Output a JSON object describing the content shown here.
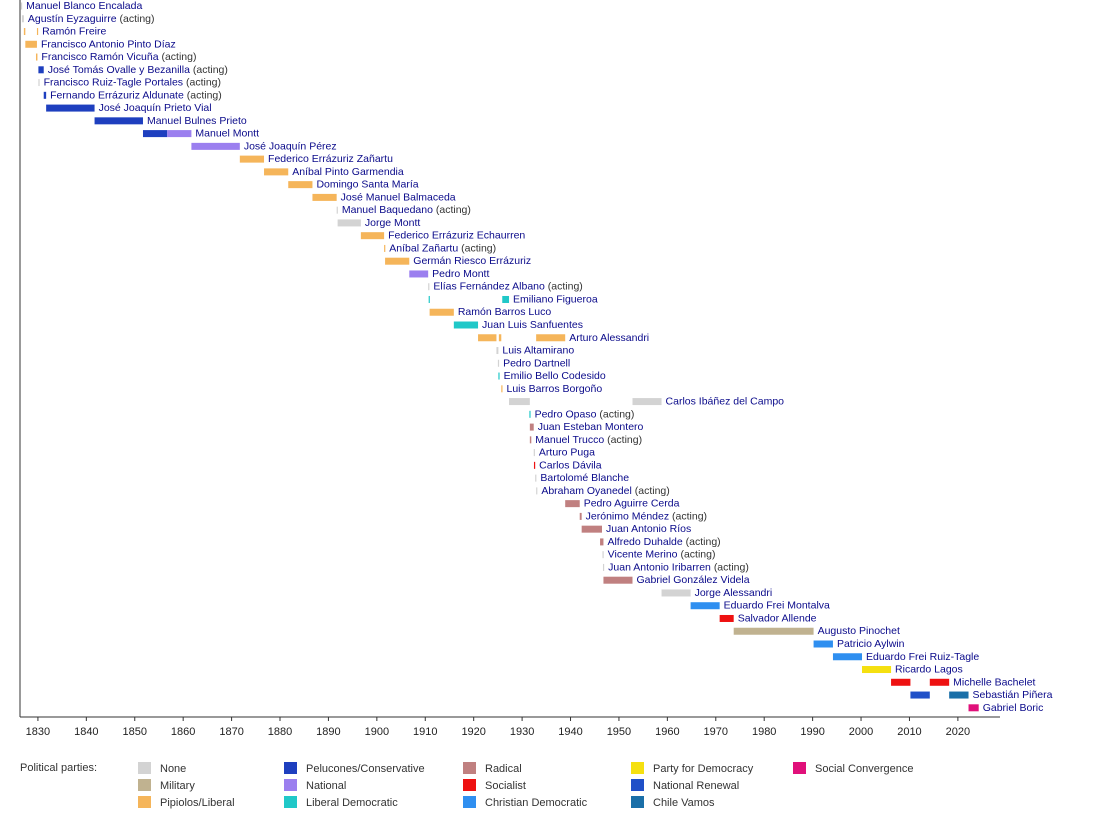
{
  "chart_data": {
    "type": "timeline",
    "xlim": [
      1826.3,
      2028.7
    ],
    "xticks": [
      1830,
      1840,
      1850,
      1860,
      1870,
      1880,
      1890,
      1900,
      1910,
      1920,
      1930,
      1940,
      1950,
      1960,
      1970,
      1980,
      1990,
      2000,
      2010,
      2020
    ],
    "rows": [
      {
        "name": "Manuel Blanco Encalada",
        "terms": [
          {
            "start": 1826.5,
            "end": 1826.7,
            "color": "#d3d3d3"
          }
        ]
      },
      {
        "name": "Agustín Eyzaguirre",
        "note": "(acting)",
        "terms": [
          {
            "start": 1826.7,
            "end": 1827.1,
            "color": "#d3d3d3"
          }
        ]
      },
      {
        "name": "Ramón Freire",
        "terms": [
          {
            "start": 1827.1,
            "end": 1827.4,
            "color": "#f5b55a"
          },
          {
            "start": 1829.8,
            "end": 1830.0,
            "color": "#f5b55a"
          }
        ]
      },
      {
        "name": "Francisco Antonio Pinto Díaz",
        "terms": [
          {
            "start": 1827.4,
            "end": 1829.8,
            "color": "#f5b55a"
          }
        ]
      },
      {
        "name": "Francisco Ramón Vicuña",
        "note": "(acting)",
        "terms": [
          {
            "start": 1829.6,
            "end": 1829.9,
            "color": "#f5b55a"
          }
        ]
      },
      {
        "name": "José Tomás Ovalle y Bezanilla",
        "note": "(acting)",
        "terms": [
          {
            "start": 1830.1,
            "end": 1831.2,
            "color": "#1e3fbf"
          }
        ]
      },
      {
        "name": "Francisco Ruiz-Tagle Portales",
        "note": "(acting)",
        "terms": [
          {
            "start": 1830.1,
            "end": 1830.3,
            "color": "#d3d3d3"
          }
        ]
      },
      {
        "name": "Fernando Errázuriz Aldunate",
        "note": "(acting)",
        "terms": [
          {
            "start": 1831.2,
            "end": 1831.7,
            "color": "#1e3fbf"
          }
        ]
      },
      {
        "name": "José Joaquín Prieto Vial",
        "terms": [
          {
            "start": 1831.7,
            "end": 1841.7,
            "color": "#1e3fbf"
          }
        ]
      },
      {
        "name": "Manuel Bulnes Prieto",
        "terms": [
          {
            "start": 1841.7,
            "end": 1851.7,
            "color": "#1e3fbf"
          }
        ]
      },
      {
        "name": "Manuel Montt",
        "terms": [
          {
            "start": 1851.7,
            "end": 1856.7,
            "color": "#1e3fbf"
          },
          {
            "start": 1856.7,
            "end": 1861.7,
            "color": "#9b7fef"
          }
        ]
      },
      {
        "name": "José Joaquín Pérez",
        "terms": [
          {
            "start": 1861.7,
            "end": 1871.7,
            "color": "#9b7fef"
          }
        ]
      },
      {
        "name": "Federico Errázuriz Zañartu",
        "terms": [
          {
            "start": 1871.7,
            "end": 1876.7,
            "color": "#f5b55a"
          }
        ]
      },
      {
        "name": "Aníbal Pinto Garmendia",
        "terms": [
          {
            "start": 1876.7,
            "end": 1881.7,
            "color": "#f5b55a"
          }
        ]
      },
      {
        "name": "Domingo Santa María",
        "terms": [
          {
            "start": 1881.7,
            "end": 1886.7,
            "color": "#f5b55a"
          }
        ]
      },
      {
        "name": "José Manuel Balmaceda",
        "terms": [
          {
            "start": 1886.7,
            "end": 1891.7,
            "color": "#f5b55a"
          }
        ]
      },
      {
        "name": "Manuel Baquedano",
        "note": "(acting)",
        "terms": [
          {
            "start": 1891.7,
            "end": 1891.9,
            "color": "#d3d3d3"
          }
        ]
      },
      {
        "name": "Jorge Montt",
        "terms": [
          {
            "start": 1891.9,
            "end": 1896.7,
            "color": "#d3d3d3"
          }
        ]
      },
      {
        "name": "Federico Errázuriz Echaurren",
        "terms": [
          {
            "start": 1896.7,
            "end": 1901.5,
            "color": "#f5b55a"
          }
        ]
      },
      {
        "name": "Aníbal Zañartu",
        "note": "(acting)",
        "terms": [
          {
            "start": 1901.5,
            "end": 1901.7,
            "color": "#f5b55a"
          }
        ]
      },
      {
        "name": "Germán Riesco Errázuriz",
        "terms": [
          {
            "start": 1901.7,
            "end": 1906.7,
            "color": "#f5b55a"
          }
        ]
      },
      {
        "name": "Pedro Montt",
        "terms": [
          {
            "start": 1906.7,
            "end": 1910.6,
            "color": "#9b7fef"
          }
        ]
      },
      {
        "name": "Elías Fernández Albano",
        "note": "(acting)",
        "terms": [
          {
            "start": 1910.6,
            "end": 1910.7,
            "color": "#d3d3d3"
          }
        ]
      },
      {
        "name": "Emiliano Figueroa",
        "terms": [
          {
            "start": 1910.7,
            "end": 1910.9,
            "color": "#20c8c8"
          },
          {
            "start": 1925.9,
            "end": 1927.3,
            "color": "#20c8c8"
          }
        ]
      },
      {
        "name": "Ramón Barros Luco",
        "terms": [
          {
            "start": 1910.9,
            "end": 1915.9,
            "color": "#f5b55a"
          }
        ]
      },
      {
        "name": "Juan Luis Sanfuentes",
        "terms": [
          {
            "start": 1915.9,
            "end": 1920.9,
            "color": "#20c8c8"
          }
        ]
      },
      {
        "name": "Arturo Alessandri",
        "terms": [
          {
            "start": 1920.9,
            "end": 1924.7,
            "color": "#f5b55a"
          },
          {
            "start": 1925.2,
            "end": 1925.7,
            "color": "#f5b55a"
          },
          {
            "start": 1932.9,
            "end": 1938.9,
            "color": "#f5b55a"
          }
        ]
      },
      {
        "name": "Luis Altamirano",
        "terms": [
          {
            "start": 1924.7,
            "end": 1925.1,
            "color": "#d3d3d3"
          }
        ]
      },
      {
        "name": "Pedro Dartnell",
        "terms": [
          {
            "start": 1925.0,
            "end": 1925.1,
            "color": "#d3d3d3"
          }
        ]
      },
      {
        "name": "Emilio Bello Codesido",
        "terms": [
          {
            "start": 1925.1,
            "end": 1925.2,
            "color": "#20c8c8"
          }
        ]
      },
      {
        "name": "Luis Barros Borgoño",
        "terms": [
          {
            "start": 1925.7,
            "end": 1925.95,
            "color": "#f5b55a"
          }
        ]
      },
      {
        "name": "Carlos Ibáñez del Campo",
        "terms": [
          {
            "start": 1927.3,
            "end": 1931.6,
            "color": "#d3d3d3"
          },
          {
            "start": 1952.8,
            "end": 1958.8,
            "color": "#d3d3d3"
          }
        ]
      },
      {
        "name": "Pedro Opaso",
        "note": "(acting)",
        "terms": [
          {
            "start": 1931.5,
            "end": 1931.6,
            "color": "#20c8c8"
          }
        ]
      },
      {
        "name": "Juan Esteban Montero",
        "terms": [
          {
            "start": 1931.6,
            "end": 1932.4,
            "color": "#c08080"
          }
        ]
      },
      {
        "name": "Manuel Trucco",
        "note": "(acting)",
        "terms": [
          {
            "start": 1931.6,
            "end": 1931.9,
            "color": "#c08080"
          }
        ]
      },
      {
        "name": "Arturo Puga",
        "terms": [
          {
            "start": 1932.4,
            "end": 1932.45,
            "color": "#d3d3d3"
          }
        ]
      },
      {
        "name": "Carlos Dávila",
        "terms": [
          {
            "start": 1932.45,
            "end": 1932.7,
            "color": "#ee1111"
          }
        ]
      },
      {
        "name": "Bartolomé Blanche",
        "terms": [
          {
            "start": 1932.7,
            "end": 1932.9,
            "color": "#d3d3d3"
          }
        ]
      },
      {
        "name": "Abraham Oyanedel",
        "note": "(acting)",
        "terms": [
          {
            "start": 1932.9,
            "end": 1932.95,
            "color": "#d3d3d3"
          }
        ]
      },
      {
        "name": "Pedro Aguirre Cerda",
        "terms": [
          {
            "start": 1938.9,
            "end": 1941.9,
            "color": "#c08080"
          }
        ]
      },
      {
        "name": "Jerónimo Méndez",
        "note": "(acting)",
        "terms": [
          {
            "start": 1941.9,
            "end": 1942.3,
            "color": "#c08080"
          }
        ]
      },
      {
        "name": "Juan Antonio Ríos",
        "terms": [
          {
            "start": 1942.3,
            "end": 1946.5,
            "color": "#c08080"
          }
        ]
      },
      {
        "name": "Alfredo Duhalde",
        "note": "(acting)",
        "terms": [
          {
            "start": 1946.1,
            "end": 1946.8,
            "color": "#c08080"
          }
        ]
      },
      {
        "name": "Vicente Merino",
        "note": "(acting)",
        "terms": [
          {
            "start": 1946.6,
            "end": 1946.7,
            "color": "#d3d3d3"
          }
        ]
      },
      {
        "name": "Juan Antonio Iribarren",
        "note": "(acting)",
        "terms": [
          {
            "start": 1946.7,
            "end": 1946.8,
            "color": "#d3d3d3"
          }
        ]
      },
      {
        "name": "Gabriel González Videla",
        "terms": [
          {
            "start": 1946.8,
            "end": 1952.8,
            "color": "#c08080"
          }
        ]
      },
      {
        "name": "Jorge Alessandri",
        "terms": [
          {
            "start": 1958.8,
            "end": 1964.8,
            "color": "#d3d3d3"
          }
        ]
      },
      {
        "name": "Eduardo Frei Montalva",
        "terms": [
          {
            "start": 1964.8,
            "end": 1970.8,
            "color": "#2f8ff0"
          }
        ]
      },
      {
        "name": "Salvador Allende",
        "terms": [
          {
            "start": 1970.8,
            "end": 1973.7,
            "color": "#ee1111"
          }
        ]
      },
      {
        "name": "Augusto Pinochet",
        "terms": [
          {
            "start": 1973.7,
            "end": 1990.2,
            "color": "#c0b290"
          }
        ]
      },
      {
        "name": "Patricio Aylwin",
        "terms": [
          {
            "start": 1990.2,
            "end": 1994.2,
            "color": "#2f8ff0"
          }
        ]
      },
      {
        "name": "Eduardo Frei Ruiz-Tagle",
        "terms": [
          {
            "start": 1994.2,
            "end": 2000.2,
            "color": "#2f8ff0"
          }
        ]
      },
      {
        "name": "Ricardo Lagos",
        "terms": [
          {
            "start": 2000.2,
            "end": 2006.2,
            "color": "#f5e010"
          }
        ]
      },
      {
        "name": "Michelle Bachelet",
        "terms": [
          {
            "start": 2006.2,
            "end": 2010.2,
            "color": "#ee1111"
          },
          {
            "start": 2014.2,
            "end": 2018.2,
            "color": "#ee1111"
          }
        ]
      },
      {
        "name": "Sebastián Piñera",
        "terms": [
          {
            "start": 2010.2,
            "end": 2014.2,
            "color": "#2050c8"
          },
          {
            "start": 2018.2,
            "end": 2022.2,
            "color": "#1a6fa8"
          }
        ]
      },
      {
        "name": "Gabriel Boric",
        "terms": [
          {
            "start": 2022.2,
            "end": 2024.3,
            "color": "#e0107a"
          }
        ]
      }
    ],
    "legend_title": "Political parties:",
    "parties": [
      {
        "name": "None",
        "color": "#d3d3d3"
      },
      {
        "name": "Military",
        "color": "#c0b290"
      },
      {
        "name": "Pipiolos/Liberal",
        "color": "#f5b55a"
      },
      {
        "name": "Pelucones/Conservative",
        "color": "#1e3fbf"
      },
      {
        "name": "National",
        "color": "#9b7fef"
      },
      {
        "name": "Liberal Democratic",
        "color": "#20c8c8"
      },
      {
        "name": "Radical",
        "color": "#c08080"
      },
      {
        "name": "Socialist",
        "color": "#ee1111"
      },
      {
        "name": "Christian Democratic",
        "color": "#2f8ff0"
      },
      {
        "name": "Party for Democracy",
        "color": "#f5e010"
      },
      {
        "name": "National Renewal",
        "color": "#2050c8"
      },
      {
        "name": "Chile Vamos",
        "color": "#1a6fa8"
      },
      {
        "name": "Social Convergence",
        "color": "#e0107a"
      }
    ]
  }
}
